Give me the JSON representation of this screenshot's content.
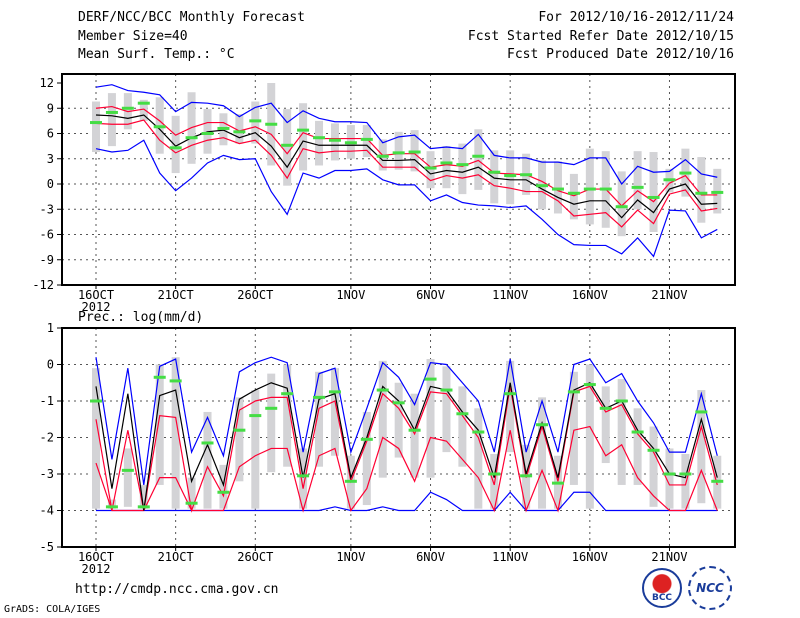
{
  "header": {
    "title": "DERF/NCC/BCC Monthly Forecast",
    "member": "Member Size=40",
    "var": "Mean Surf. Temp.: °C",
    "period": "For 2012/10/16-2012/11/24",
    "refer": "Fcst Started Refer Date 2012/10/15",
    "produced": "Fcst Produced Date 2012/10/16"
  },
  "footer": {
    "url": "http://cmdp.ncc.cma.gov.cn",
    "grads": "GrADS: COLA/IGES",
    "logo1": "BCC",
    "logo2": "NCC"
  },
  "colors": {
    "max_min": "#0000ff",
    "quartile": "#ff0033",
    "mean": "#000000",
    "obs": "#44dd44",
    "box": "#d3d3d6"
  },
  "chart_data": [
    {
      "type": "line",
      "title": "Mean Surf. Temp.: °C",
      "ylim": [
        -12,
        12
      ],
      "yticks": [
        12,
        9,
        6,
        3,
        0,
        -3,
        -6,
        -9,
        -12
      ],
      "xticks": [
        {
          "day": 0,
          "label": "16OCT",
          "sub": "2012"
        },
        {
          "day": 5,
          "label": "21OCT"
        },
        {
          "day": 10,
          "label": "26OCT"
        },
        {
          "day": 16,
          "label": "1NOV"
        },
        {
          "day": 21,
          "label": "6NOV"
        },
        {
          "day": 26,
          "label": "11NOV"
        },
        {
          "day": 31,
          "label": "16NOV"
        },
        {
          "day": 36,
          "label": "21NOV"
        }
      ],
      "ens_max": [
        11.5,
        11.8,
        11.1,
        10.9,
        10.6,
        8.6,
        9.7,
        9.6,
        9.3,
        8.0,
        9.1,
        9.6,
        7.3,
        8.7,
        7.8,
        7.4,
        7.4,
        7.3,
        4.9,
        5.6,
        5.8,
        4.2,
        4.4,
        4.2,
        5.9,
        3.4,
        3.1,
        3.1,
        2.6,
        2.6,
        2.3,
        3.1,
        3.1,
        0.0,
        2.1,
        1.4,
        1.5,
        2.9,
        1.2,
        0.8
      ],
      "upper": [
        9.0,
        9.2,
        8.6,
        8.9,
        7.5,
        5.8,
        6.7,
        7.3,
        7.3,
        6.3,
        6.8,
        5.9,
        3.6,
        6.1,
        5.4,
        5.4,
        5.4,
        5.4,
        3.4,
        3.6,
        3.6,
        2.0,
        2.3,
        2.1,
        2.8,
        1.3,
        1.2,
        1.1,
        0.3,
        -0.8,
        -1.4,
        -0.6,
        -0.6,
        -2.6,
        -0.8,
        -2.1,
        0.1,
        1.0,
        -1.3,
        -1.3
      ],
      "mean": [
        8.2,
        8.1,
        7.8,
        8.2,
        6.5,
        4.5,
        5.5,
        6.2,
        6.4,
        5.5,
        6.1,
        4.5,
        2.0,
        5.1,
        4.6,
        4.6,
        4.6,
        4.6,
        2.8,
        2.8,
        2.9,
        1.2,
        1.6,
        1.4,
        2.0,
        0.7,
        0.5,
        0.5,
        -0.6,
        -1.6,
        -2.4,
        -2.0,
        -2.0,
        -4.0,
        -1.9,
        -3.4,
        -0.6,
        0.0,
        -2.4,
        -2.3
      ],
      "lower": [
        7.2,
        7.1,
        7.1,
        7.6,
        5.2,
        3.7,
        4.6,
        5.2,
        5.5,
        4.8,
        5.2,
        3.4,
        0.7,
        4.2,
        3.7,
        3.9,
        3.9,
        4.0,
        2.0,
        2.0,
        2.0,
        0.4,
        1.0,
        0.7,
        1.1,
        -0.2,
        -0.5,
        -0.9,
        -0.9,
        -2.0,
        -3.8,
        -3.6,
        -3.4,
        -5.1,
        -3.1,
        -4.7,
        -1.2,
        -0.7,
        -3.2,
        -2.9
      ],
      "ens_min": [
        4.2,
        3.8,
        4.0,
        5.2,
        1.3,
        -0.8,
        0.7,
        2.5,
        3.4,
        2.9,
        3.0,
        -0.9,
        -3.6,
        1.3,
        0.7,
        1.6,
        1.6,
        1.8,
        0.5,
        -0.1,
        -0.1,
        -2.0,
        -1.3,
        -2.2,
        -2.5,
        -2.6,
        -2.8,
        -2.6,
        -4.2,
        -6.0,
        -7.2,
        -7.3,
        -7.3,
        -8.3,
        -6.4,
        -8.6,
        -3.1,
        -3.2,
        -6.4,
        -5.4
      ],
      "observed": [
        7.3,
        8.5,
        9.0,
        9.6,
        6.8,
        4.3,
        5.5,
        6.0,
        6.6,
        6.2,
        7.5,
        7.1,
        4.6,
        6.4,
        5.5,
        5.2,
        4.9,
        5.3,
        3.3,
        3.7,
        3.8,
        1.9,
        2.5,
        2.3,
        3.3,
        1.4,
        1.0,
        1.1,
        -0.2,
        -0.6,
        -1.1,
        -0.6,
        -0.6,
        -2.7,
        -0.4,
        -1.6,
        0.5,
        1.3,
        -1.1,
        -1.0
      ],
      "box": [
        [
          3.8,
          9.8
        ],
        [
          4.5,
          10.8
        ],
        [
          6.5,
          10.8
        ],
        [
          7.5,
          10.0
        ],
        [
          3.6,
          10.3
        ],
        [
          1.3,
          8.1
        ],
        [
          2.4,
          10.9
        ],
        [
          3.6,
          8.9
        ],
        [
          4.6,
          8.4
        ],
        [
          4.8,
          8.3
        ],
        [
          4.8,
          9.8
        ],
        [
          2.2,
          12.0
        ],
        [
          -0.2,
          8.9
        ],
        [
          1.6,
          9.6
        ],
        [
          2.2,
          7.5
        ],
        [
          2.8,
          7.2
        ],
        [
          3.0,
          7.0
        ],
        [
          3.2,
          7.0
        ],
        [
          1.6,
          5.3
        ],
        [
          1.7,
          6.2
        ],
        [
          1.5,
          6.4
        ],
        [
          -0.5,
          3.9
        ],
        [
          -0.5,
          4.5
        ],
        [
          -1.2,
          4.8
        ],
        [
          -0.7,
          6.5
        ],
        [
          -2.3,
          4.0
        ],
        [
          -2.4,
          4.0
        ],
        [
          -1.3,
          3.6
        ],
        [
          -3.0,
          2.8
        ],
        [
          -3.5,
          2.7
        ],
        [
          -4.2,
          1.2
        ],
        [
          -4.8,
          4.2
        ],
        [
          -5.2,
          3.9
        ],
        [
          -6.2,
          1.5
        ],
        [
          -3.0,
          3.9
        ],
        [
          -5.7,
          3.8
        ],
        [
          -1.0,
          1.8
        ],
        [
          -1.5,
          4.2
        ],
        [
          -4.6,
          3.2
        ],
        [
          -3.5,
          1.8
        ]
      ]
    },
    {
      "type": "line",
      "title": "Prec.: log(mm/d)",
      "ylim": [
        -5,
        1
      ],
      "yticks": [
        1,
        0,
        -1,
        -2,
        -3,
        -4,
        -5
      ],
      "xticks": [
        {
          "day": 0,
          "label": "16OCT",
          "sub": "2012"
        },
        {
          "day": 5,
          "label": "21OCT"
        },
        {
          "day": 10,
          "label": "26OCT"
        },
        {
          "day": 16,
          "label": "1NOV"
        },
        {
          "day": 21,
          "label": "6NOV"
        },
        {
          "day": 26,
          "label": "11NOV"
        },
        {
          "day": 31,
          "label": "16NOV"
        },
        {
          "day": 36,
          "label": "21NOV"
        }
      ],
      "ens_max": [
        0.2,
        -2.6,
        -0.1,
        -3.3,
        -0.05,
        0.15,
        -2.4,
        -1.45,
        -2.5,
        -0.2,
        0.05,
        0.2,
        0.05,
        -2.4,
        -0.25,
        -0.1,
        -2.4,
        -1.2,
        0.05,
        -0.35,
        -1.1,
        0.05,
        0.0,
        -0.5,
        -1.0,
        -2.4,
        0.15,
        -2.4,
        -1.0,
        -2.4,
        0.0,
        0.15,
        -0.5,
        -0.25,
        -1.0,
        -1.6,
        -2.4,
        -2.4,
        -0.8,
        -2.5
      ],
      "upper": [
        -1.5,
        -4.0,
        -1.8,
        -4.0,
        -1.4,
        -1.45,
        -4.0,
        -2.8,
        -3.6,
        -1.25,
        -1.0,
        -0.9,
        -0.9,
        -3.4,
        -1.2,
        -1.0,
        -3.2,
        -2.1,
        -0.8,
        -1.2,
        -1.9,
        -0.75,
        -0.8,
        -1.4,
        -2.0,
        -3.3,
        -0.6,
        -3.1,
        -1.7,
        -3.2,
        -0.75,
        -0.6,
        -1.3,
        -1.1,
        -1.9,
        -2.4,
        -3.3,
        -3.3,
        -1.7,
        -3.3
      ],
      "mean": [
        -0.6,
        -3.4,
        -0.8,
        -4.0,
        -0.85,
        -0.7,
        -3.2,
        -2.2,
        -3.3,
        -0.95,
        -0.7,
        -0.5,
        -0.65,
        -3.1,
        -0.95,
        -0.8,
        -3.1,
        -2.0,
        -0.6,
        -1.0,
        -1.8,
        -0.6,
        -0.7,
        -1.3,
        -1.8,
        -3.1,
        -0.5,
        -3.0,
        -1.6,
        -3.1,
        -0.7,
        -0.5,
        -1.2,
        -1.0,
        -1.8,
        -2.3,
        -3.0,
        -3.1,
        -1.5,
        -3.1
      ],
      "lower": [
        -2.7,
        -4.0,
        -4.0,
        -4.0,
        -3.1,
        -3.1,
        -4.0,
        -4.0,
        -4.0,
        -2.8,
        -2.5,
        -2.3,
        -2.3,
        -4.0,
        -2.5,
        -2.3,
        -4.0,
        -3.4,
        -2.0,
        -2.3,
        -3.2,
        -2.0,
        -2.1,
        -2.6,
        -3.1,
        -4.0,
        -1.8,
        -4.0,
        -2.9,
        -4.0,
        -1.8,
        -1.7,
        -2.5,
        -2.2,
        -3.1,
        -3.6,
        -4.0,
        -4.0,
        -2.9,
        -4.0
      ],
      "ens_min": [
        -4,
        -4,
        -4,
        -4,
        -4,
        -4,
        -4,
        -4,
        -4,
        -4,
        -4,
        -4,
        -4,
        -4,
        -4,
        -3.9,
        -4,
        -4,
        -3.9,
        -4,
        -4,
        -3.5,
        -3.7,
        -4,
        -4,
        -4,
        -3.5,
        -4,
        -4,
        -4,
        -3.5,
        -3.5,
        -4,
        -4,
        -4,
        -4,
        -4,
        -4,
        -4,
        -4
      ],
      "observed": [
        -1.0,
        -3.9,
        -2.9,
        -3.9,
        -0.35,
        -0.45,
        -3.8,
        -2.15,
        -3.5,
        -1.8,
        -1.4,
        -1.2,
        -0.8,
        -3.05,
        -0.9,
        -0.75,
        -3.2,
        -2.05,
        -0.7,
        -1.05,
        -1.8,
        -0.4,
        -0.7,
        -1.35,
        -1.85,
        -3.0,
        -0.8,
        -3.05,
        -1.65,
        -3.25,
        -0.75,
        -0.55,
        -1.2,
        -1.0,
        -1.85,
        -2.35,
        -3.0,
        -3.0,
        -1.3,
        -3.2
      ],
      "box": [
        [
          -3.95,
          -0.1
        ],
        [
          -3.95,
          -3.7
        ],
        [
          -3.9,
          -2.3
        ],
        [
          -3.95,
          -3.3
        ],
        [
          -3.3,
          0.0
        ],
        [
          -3.95,
          0.2
        ],
        [
          -3.95,
          -3.1
        ],
        [
          -3.95,
          -1.3
        ],
        [
          -3.95,
          -2.75
        ],
        [
          -3.2,
          -0.9
        ],
        [
          -3.95,
          -0.7
        ],
        [
          -2.95,
          -0.25
        ],
        [
          -2.8,
          0.0
        ],
        [
          -3.95,
          -2.3
        ],
        [
          -2.8,
          -0.2
        ],
        [
          -2.5,
          -0.1
        ],
        [
          -3.95,
          -2.5
        ],
        [
          -3.85,
          -1.3
        ],
        [
          -3.1,
          0.1
        ],
        [
          -2.55,
          -0.5
        ],
        [
          -3.1,
          -0.8
        ],
        [
          -3.1,
          0.15
        ],
        [
          -2.4,
          -0.05
        ],
        [
          -2.8,
          -0.6
        ],
        [
          -3.95,
          -1.2
        ],
        [
          -3.95,
          -2.45
        ],
        [
          -2.4,
          0.1
        ],
        [
          -3.95,
          -2.2
        ],
        [
          -3.95,
          -0.9
        ],
        [
          -3.95,
          -2.5
        ],
        [
          -3.3,
          -0.2
        ],
        [
          -3.95,
          0.0
        ],
        [
          -2.7,
          -0.6
        ],
        [
          -3.3,
          -0.4
        ],
        [
          -3.3,
          -1.2
        ],
        [
          -3.9,
          -1.7
        ],
        [
          -3.95,
          -2.3
        ],
        [
          -3.95,
          -2.45
        ],
        [
          -3.8,
          -0.7
        ],
        [
          -3.95,
          -2.5
        ]
      ]
    }
  ]
}
